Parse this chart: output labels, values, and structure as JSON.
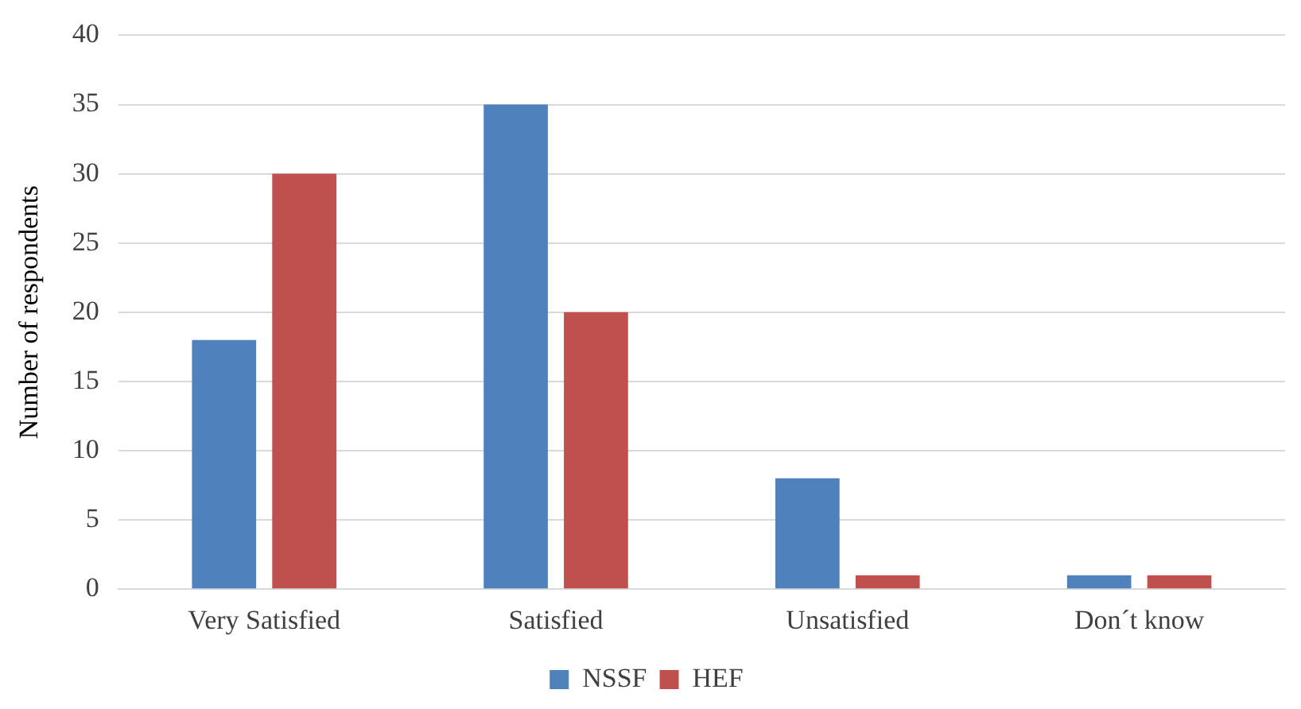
{
  "chart_data": {
    "type": "bar",
    "ylabel": "Number of respondents",
    "categories": [
      "Very Satisfied",
      "Satisfied",
      "Unsatisfied",
      "Don´t know"
    ],
    "series": [
      {
        "name": "NSSF",
        "color": "#4f81bd",
        "values": [
          18,
          35,
          8,
          1
        ]
      },
      {
        "name": "HEF",
        "color": "#c0504d",
        "values": [
          30,
          20,
          1,
          1
        ]
      }
    ],
    "ylim": [
      0,
      40
    ],
    "yticks": [
      0,
      5,
      10,
      15,
      20,
      25,
      30,
      35,
      40
    ],
    "grid": "y",
    "legend": "bottom"
  }
}
